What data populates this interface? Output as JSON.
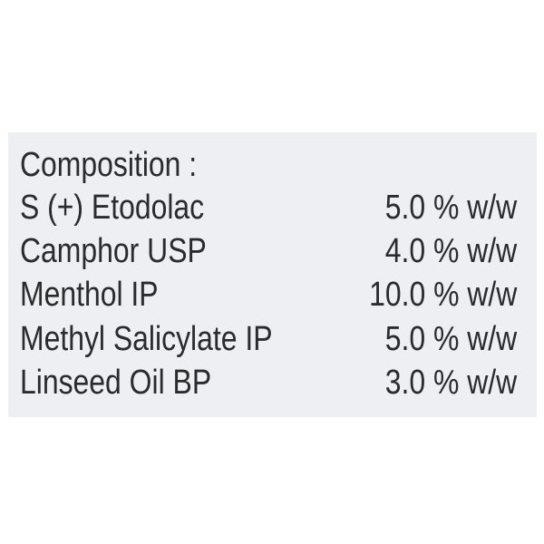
{
  "heading": "Composition :",
  "ingredients": [
    {
      "name": "S (+) Etodolac",
      "amount": "5.0 % w/w"
    },
    {
      "name": "Camphor USP",
      "amount": "4.0 % w/w"
    },
    {
      "name": "Menthol IP",
      "amount": "10.0 % w/w"
    },
    {
      "name": "Methyl Salicylate IP",
      "amount": "5.0 % w/w"
    },
    {
      "name": "Linseed Oil BP",
      "amount": "3.0 % w/w"
    }
  ],
  "colors": {
    "panel": "#eeeff3",
    "text": "#2b2b2d",
    "background": "#ffffff"
  }
}
